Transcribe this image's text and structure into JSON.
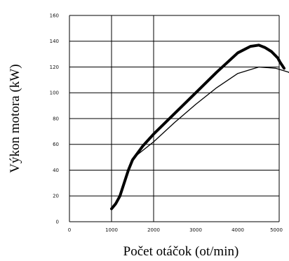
{
  "chart_data": {
    "type": "line",
    "title": "",
    "xlabel": "Počet otáčok  (ot/min)",
    "ylabel": "Výkon motora  (kW)",
    "xlim": [
      0,
      6000
    ],
    "ylim": [
      0,
      160
    ],
    "x_ticks": [
      "0",
      "1000",
      "2000",
      "3000",
      "4000",
      "5000"
    ],
    "y_ticks": [
      "0",
      "20",
      "40",
      "60",
      "80",
      "100",
      "120",
      "140",
      "160"
    ],
    "grid": true,
    "series": [
      {
        "style": "thick",
        "color": "#000000",
        "x": [
          1000,
          1100,
          1200,
          1300,
          1400,
          1500,
          1750,
          2000,
          2500,
          3000,
          3500,
          4000,
          4300,
          4500,
          4650,
          4800,
          4950,
          5000,
          5100
        ],
        "y": [
          10,
          14,
          20,
          30,
          40,
          48,
          59,
          68,
          84,
          100,
          116,
          131,
          136,
          137,
          135,
          132,
          127,
          124,
          119
        ]
      },
      {
        "style": "thin",
        "color": "#000000",
        "x": [
          1500,
          2000,
          2500,
          3000,
          3500,
          4000,
          4500,
          4900,
          5200,
          5500
        ],
        "y": [
          49,
          62,
          77,
          91,
          104,
          115,
          120,
          119,
          116,
          110
        ]
      }
    ]
  }
}
